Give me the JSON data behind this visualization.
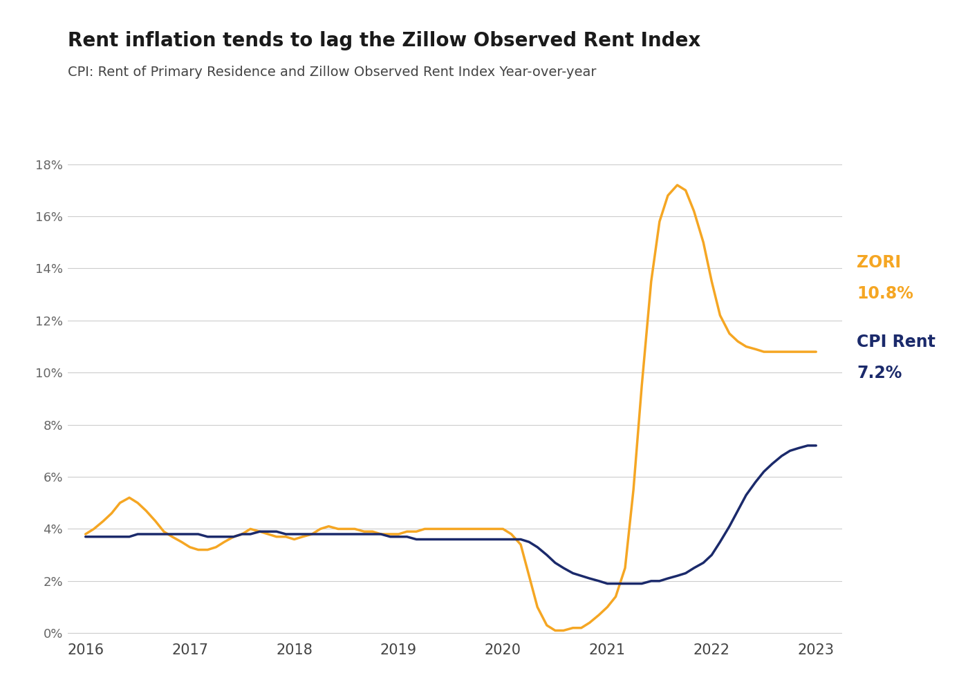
{
  "title": "Rent inflation tends to lag the Zillow Observed Rent Index",
  "subtitle": "CPI: Rent of Primary Residence and Zillow Observed Rent Index Year-over-year",
  "title_fontsize": 20,
  "subtitle_fontsize": 14,
  "title_color": "#1a1a1a",
  "subtitle_color": "#444444",
  "background_color": "#ffffff",
  "zori_color": "#F5A623",
  "cpi_color": "#1B2A6B",
  "grid_color": "#cccccc",
  "ylim": [
    -0.001,
    0.19
  ],
  "yticks": [
    0.0,
    0.02,
    0.04,
    0.06,
    0.08,
    0.1,
    0.12,
    0.14,
    0.16,
    0.18
  ],
  "zori_label_line1": "ZORI",
  "zori_label_line2": "10.8%",
  "cpi_label_line1": "CPI Rent",
  "cpi_label_line2": "7.2%",
  "line_width": 2.5,
  "xticks": [
    2016,
    2017,
    2018,
    2019,
    2020,
    2021,
    2022,
    2023
  ],
  "xtick_labels": [
    "2016",
    "2017",
    "2018",
    "2019",
    "2020",
    "2021",
    "2022",
    "2023"
  ],
  "zori_x": [
    2016.0,
    2016.08,
    2016.17,
    2016.25,
    2016.33,
    2016.42,
    2016.5,
    2016.58,
    2016.67,
    2016.75,
    2016.83,
    2016.92,
    2017.0,
    2017.08,
    2017.17,
    2017.25,
    2017.33,
    2017.42,
    2017.5,
    2017.58,
    2017.67,
    2017.75,
    2017.83,
    2017.92,
    2018.0,
    2018.08,
    2018.17,
    2018.25,
    2018.33,
    2018.42,
    2018.5,
    2018.58,
    2018.67,
    2018.75,
    2018.83,
    2018.92,
    2019.0,
    2019.08,
    2019.17,
    2019.25,
    2019.33,
    2019.42,
    2019.5,
    2019.58,
    2019.67,
    2019.75,
    2019.83,
    2019.92,
    2020.0,
    2020.08,
    2020.17,
    2020.25,
    2020.33,
    2020.42,
    2020.5,
    2020.58,
    2020.67,
    2020.75,
    2020.83,
    2020.92,
    2021.0,
    2021.08,
    2021.17,
    2021.25,
    2021.33,
    2021.42,
    2021.5,
    2021.58,
    2021.67,
    2021.75,
    2021.83,
    2021.92,
    2022.0,
    2022.08,
    2022.17,
    2022.25,
    2022.33,
    2022.42,
    2022.5,
    2022.58,
    2022.67,
    2022.75,
    2022.83,
    2022.92,
    2023.0
  ],
  "zori_y": [
    0.038,
    0.04,
    0.043,
    0.046,
    0.05,
    0.052,
    0.05,
    0.047,
    0.043,
    0.039,
    0.037,
    0.035,
    0.033,
    0.032,
    0.032,
    0.033,
    0.035,
    0.037,
    0.038,
    0.04,
    0.039,
    0.038,
    0.037,
    0.037,
    0.036,
    0.037,
    0.038,
    0.04,
    0.041,
    0.04,
    0.04,
    0.04,
    0.039,
    0.039,
    0.038,
    0.038,
    0.038,
    0.039,
    0.039,
    0.04,
    0.04,
    0.04,
    0.04,
    0.04,
    0.04,
    0.04,
    0.04,
    0.04,
    0.04,
    0.038,
    0.034,
    0.022,
    0.01,
    0.003,
    0.001,
    0.001,
    0.002,
    0.002,
    0.004,
    0.007,
    0.01,
    0.014,
    0.025,
    0.055,
    0.095,
    0.135,
    0.158,
    0.168,
    0.172,
    0.17,
    0.162,
    0.15,
    0.135,
    0.122,
    0.115,
    0.112,
    0.11,
    0.109,
    0.108,
    0.108,
    0.108,
    0.108,
    0.108,
    0.108,
    0.108
  ],
  "cpi_x": [
    2016.0,
    2016.08,
    2016.17,
    2016.25,
    2016.33,
    2016.42,
    2016.5,
    2016.58,
    2016.67,
    2016.75,
    2016.83,
    2016.92,
    2017.0,
    2017.08,
    2017.17,
    2017.25,
    2017.33,
    2017.42,
    2017.5,
    2017.58,
    2017.67,
    2017.75,
    2017.83,
    2017.92,
    2018.0,
    2018.08,
    2018.17,
    2018.25,
    2018.33,
    2018.42,
    2018.5,
    2018.58,
    2018.67,
    2018.75,
    2018.83,
    2018.92,
    2019.0,
    2019.08,
    2019.17,
    2019.25,
    2019.33,
    2019.42,
    2019.5,
    2019.58,
    2019.67,
    2019.75,
    2019.83,
    2019.92,
    2020.0,
    2020.08,
    2020.17,
    2020.25,
    2020.33,
    2020.42,
    2020.5,
    2020.58,
    2020.67,
    2020.75,
    2020.83,
    2020.92,
    2021.0,
    2021.08,
    2021.17,
    2021.25,
    2021.33,
    2021.42,
    2021.5,
    2021.58,
    2021.67,
    2021.75,
    2021.83,
    2021.92,
    2022.0,
    2022.08,
    2022.17,
    2022.25,
    2022.33,
    2022.42,
    2022.5,
    2022.58,
    2022.67,
    2022.75,
    2022.83,
    2022.92,
    2023.0
  ],
  "cpi_y": [
    0.037,
    0.037,
    0.037,
    0.037,
    0.037,
    0.037,
    0.038,
    0.038,
    0.038,
    0.038,
    0.038,
    0.038,
    0.038,
    0.038,
    0.037,
    0.037,
    0.037,
    0.037,
    0.038,
    0.038,
    0.039,
    0.039,
    0.039,
    0.038,
    0.038,
    0.038,
    0.038,
    0.038,
    0.038,
    0.038,
    0.038,
    0.038,
    0.038,
    0.038,
    0.038,
    0.037,
    0.037,
    0.037,
    0.036,
    0.036,
    0.036,
    0.036,
    0.036,
    0.036,
    0.036,
    0.036,
    0.036,
    0.036,
    0.036,
    0.036,
    0.036,
    0.035,
    0.033,
    0.03,
    0.027,
    0.025,
    0.023,
    0.022,
    0.021,
    0.02,
    0.019,
    0.019,
    0.019,
    0.019,
    0.019,
    0.02,
    0.02,
    0.021,
    0.022,
    0.023,
    0.025,
    0.027,
    0.03,
    0.035,
    0.041,
    0.047,
    0.053,
    0.058,
    0.062,
    0.065,
    0.068,
    0.07,
    0.071,
    0.072,
    0.072
  ]
}
